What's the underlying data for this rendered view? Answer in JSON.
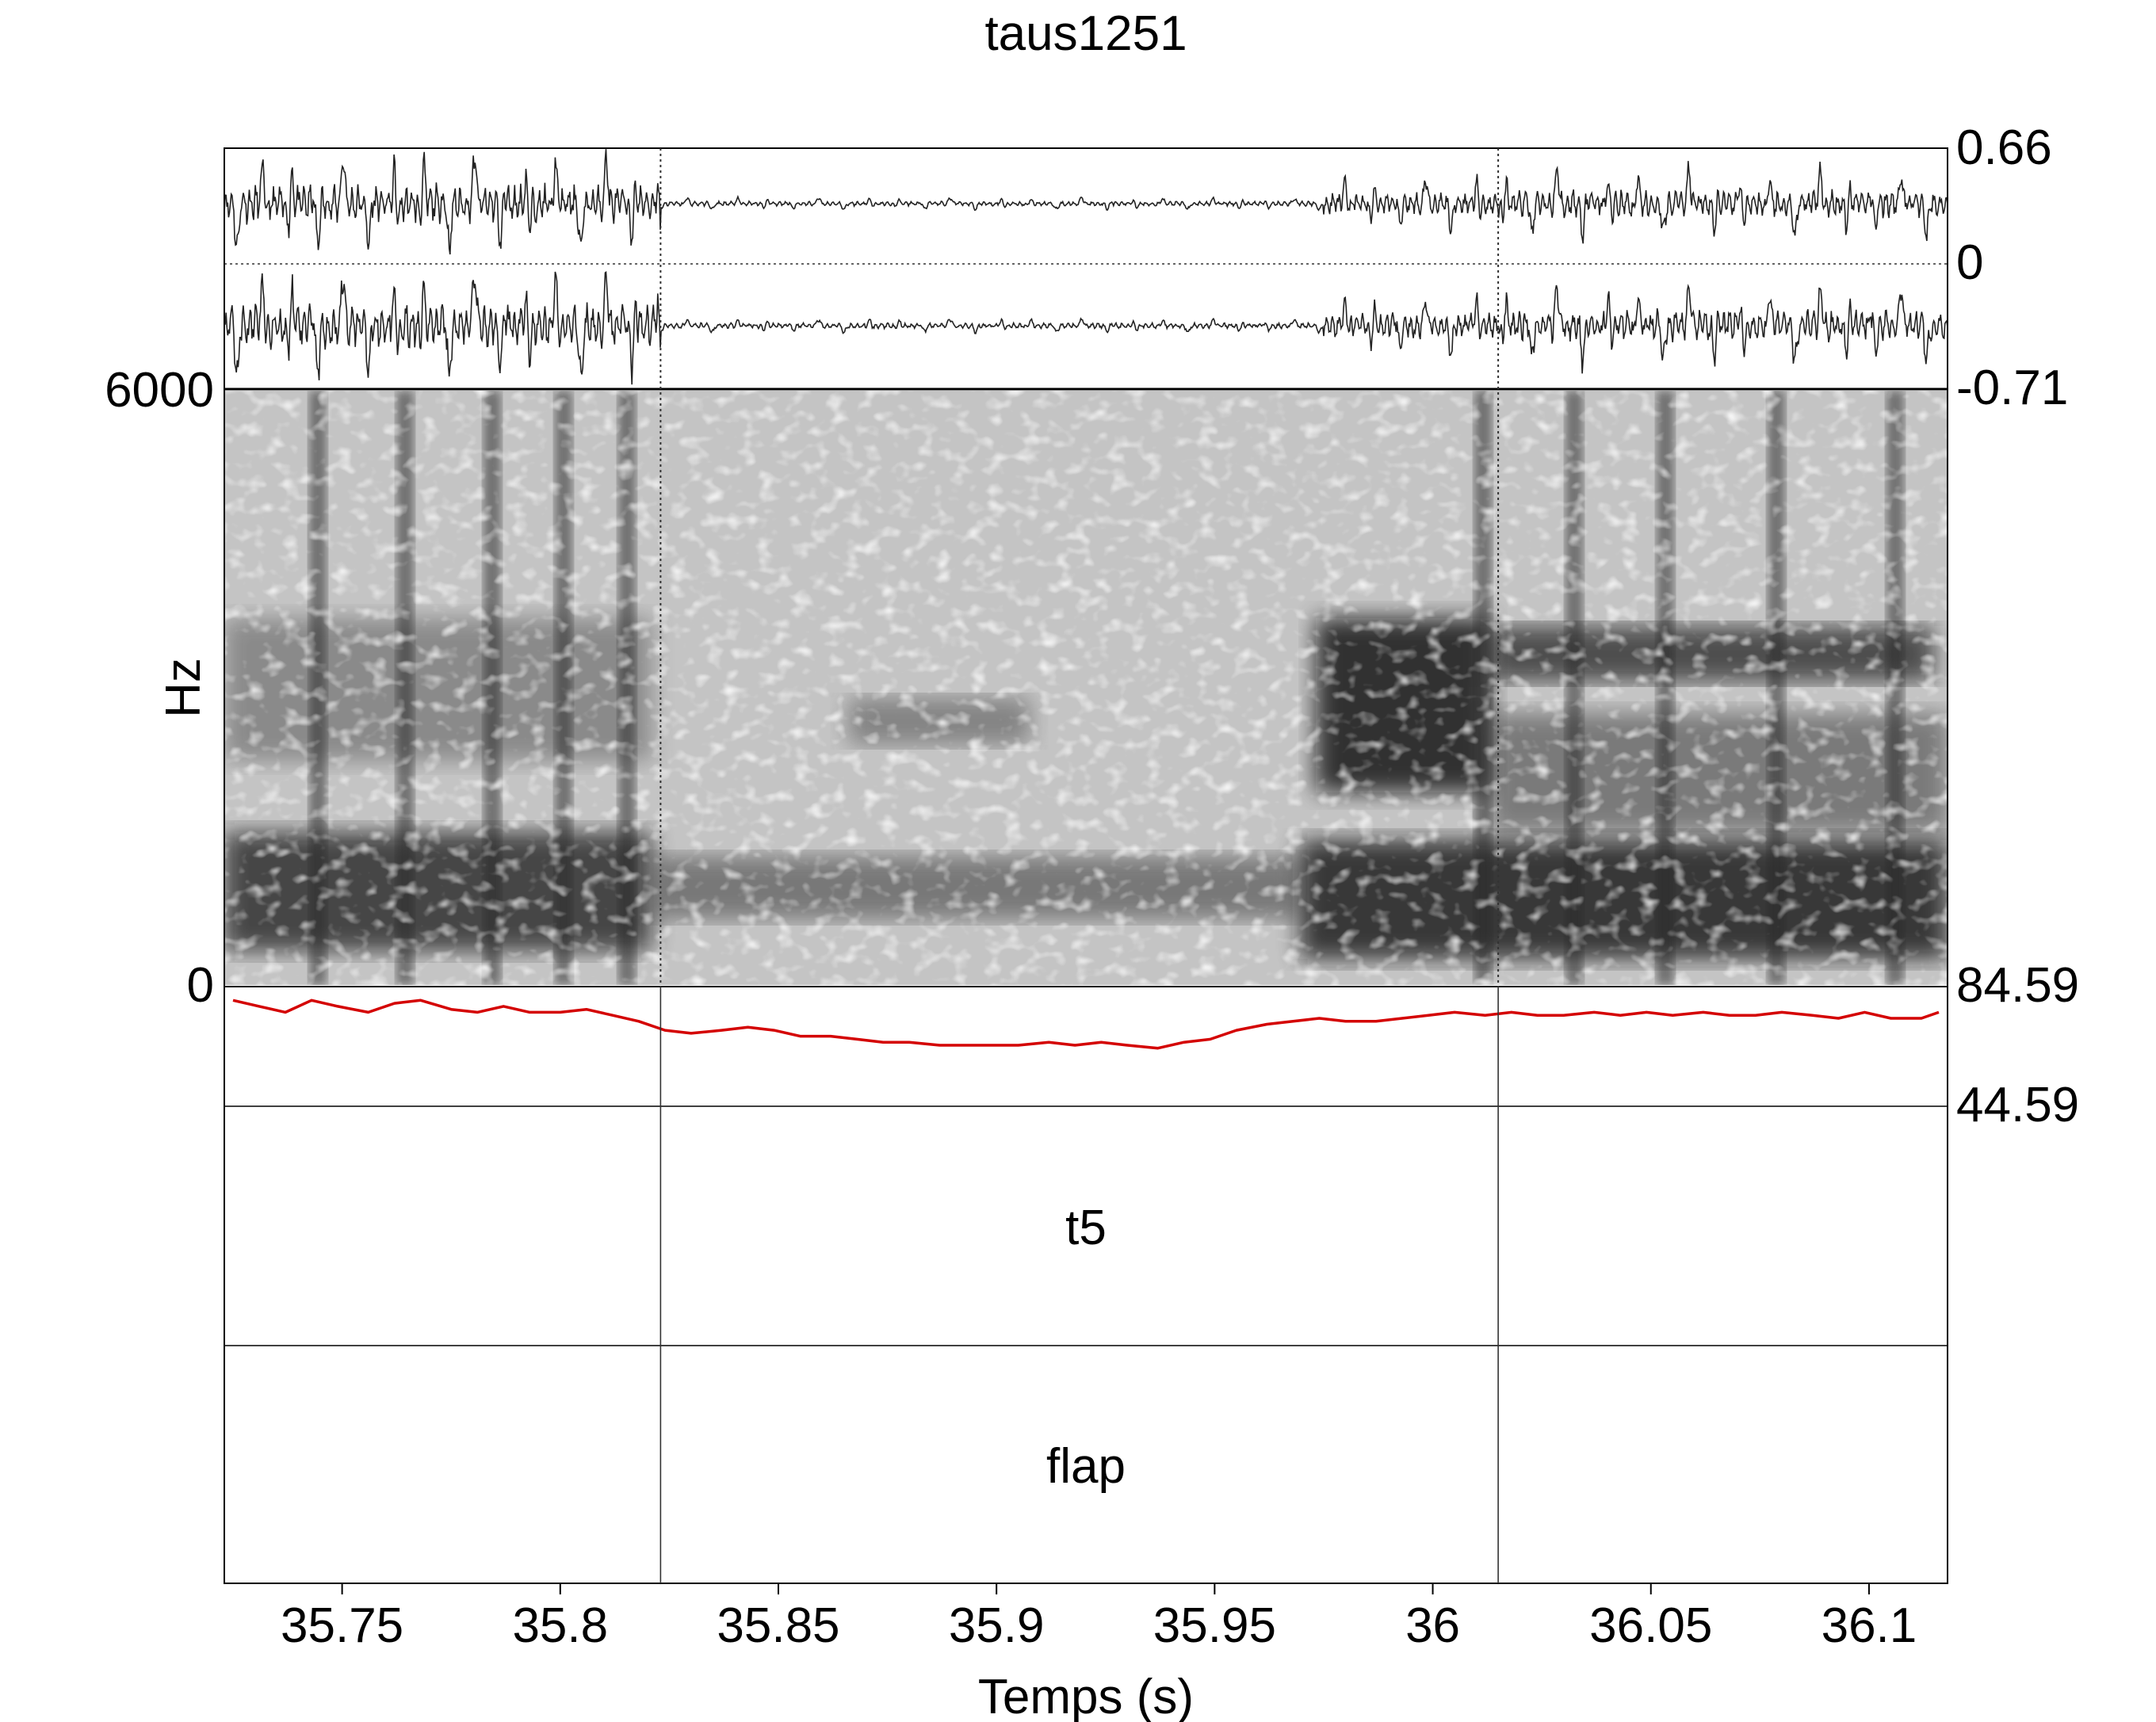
{
  "chart_data": {
    "type": "line",
    "title": "taus1251",
    "xlabel": "Temps (s)",
    "ylabel": "Hz",
    "xlim": [
      35.723,
      36.118
    ],
    "x_ticks": [
      35.75,
      35.8,
      35.85,
      35.9,
      35.95,
      36,
      36.05,
      36.1
    ],
    "x_tick_labels": [
      "35.75",
      "35.8",
      "35.85",
      "35.9",
      "35.95",
      "36",
      "36.05",
      "36.1"
    ],
    "waveform": {
      "channels": 2,
      "y_labels": [
        "0.66",
        "0",
        "-0.71"
      ],
      "ylim": [
        -0.71,
        0.66
      ]
    },
    "spectrogram": {
      "ylim": [
        0,
        6000
      ],
      "y_labels": [
        "6000",
        "0"
      ]
    },
    "intensity": {
      "color": "#d40000",
      "ylim": [
        44.59,
        84.59
      ],
      "y_labels": [
        "84.59",
        "44.59"
      ],
      "x": [
        35.725,
        35.731,
        35.737,
        35.743,
        35.749,
        35.756,
        35.762,
        35.768,
        35.775,
        35.781,
        35.787,
        35.793,
        35.8,
        35.806,
        35.812,
        35.818,
        35.824,
        35.83,
        35.837,
        35.843,
        35.849,
        35.855,
        35.862,
        35.868,
        35.874,
        35.88,
        35.887,
        35.893,
        35.899,
        35.905,
        35.912,
        35.918,
        35.924,
        35.93,
        35.937,
        35.943,
        35.949,
        35.955,
        35.962,
        35.968,
        35.974,
        35.98,
        35.987,
        35.993,
        35.999,
        36.005,
        36.012,
        36.018,
        36.024,
        36.03,
        36.037,
        36.043,
        36.049,
        36.055,
        36.062,
        36.068,
        36.074,
        36.08,
        36.087,
        36.093,
        36.099,
        36.105,
        36.112,
        36.116
      ],
      "y": [
        80,
        78,
        76,
        80,
        78,
        76,
        79,
        80,
        77,
        76,
        78,
        76,
        76,
        77,
        75,
        73,
        70,
        69,
        70,
        71,
        70,
        68,
        68,
        67,
        66,
        66,
        65,
        65,
        65,
        65,
        66,
        65,
        66,
        65,
        64,
        66,
        67,
        70,
        72,
        73,
        74,
        73,
        73,
        74,
        75,
        76,
        75,
        76,
        75,
        75,
        76,
        75,
        76,
        75,
        76,
        75,
        75,
        76,
        75,
        74,
        76,
        74,
        74,
        76
      ]
    },
    "boundaries": [
      35.823,
      36.015
    ],
    "tiers": [
      {
        "label": "t5"
      },
      {
        "label": "flap"
      }
    ]
  }
}
